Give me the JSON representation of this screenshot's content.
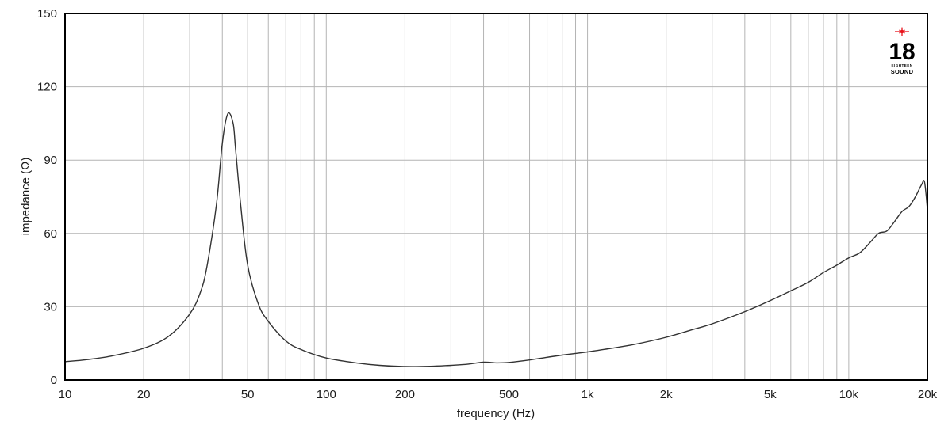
{
  "chart_data": {
    "type": "line",
    "title": "",
    "xlabel": "frequency (Hz)",
    "ylabel": "impedance (Ω)",
    "xscale": "log",
    "xlim": [
      10,
      20000
    ],
    "ylim": [
      0,
      150
    ],
    "grid": true,
    "legend": null,
    "x_ticks": [
      10,
      20,
      50,
      100,
      200,
      500,
      1000,
      2000,
      5000,
      10000,
      20000
    ],
    "x_tick_labels": [
      "10",
      "20",
      "50",
      "100",
      "200",
      "500",
      "1k",
      "2k",
      "5k",
      "10k",
      "20k"
    ],
    "y_ticks": [
      0,
      30,
      60,
      90,
      120,
      150
    ],
    "y_tick_labels": [
      "0",
      "30",
      "60",
      "90",
      "120",
      "150"
    ],
    "series": [
      {
        "name": "impedance",
        "color": "#333333",
        "x": [
          10,
          12,
          15,
          20,
          25,
          30,
          33,
          35,
          38,
          40,
          42,
          44,
          45,
          47,
          50,
          55,
          60,
          70,
          80,
          100,
          130,
          160,
          200,
          250,
          300,
          350,
          400,
          450,
          500,
          600,
          700,
          800,
          1000,
          1200,
          1500,
          2000,
          2500,
          3000,
          4000,
          5000,
          6000,
          7000,
          8000,
          9000,
          10000,
          11000,
          12000,
          13000,
          14000,
          15000,
          16000,
          17000,
          18000,
          19000,
          19500,
          20000
        ],
        "values": [
          7.5,
          8.3,
          9.8,
          13,
          18,
          27,
          36,
          47,
          72,
          97,
          109,
          105,
          94,
          72,
          47,
          31,
          24,
          16,
          12.5,
          9,
          7,
          6,
          5.5,
          5.6,
          6,
          6.5,
          7.3,
          7,
          7.2,
          8.2,
          9.3,
          10.2,
          11.5,
          12.8,
          14.5,
          17.5,
          20.5,
          23,
          28,
          32.5,
          36.5,
          40,
          44,
          47,
          50,
          52,
          56,
          60,
          61,
          65,
          69,
          71,
          75,
          80,
          81,
          70
        ]
      }
    ],
    "annotations": [
      {
        "type": "logo",
        "text": "18",
        "subtext": [
          "EIGHTEEN",
          "SOUND"
        ],
        "position": "top-right",
        "accent_color": "#e8141c"
      }
    ]
  },
  "logo": {
    "number": "18",
    "line1": "EIGHTEEN",
    "line2": "SOUND",
    "accent_color": "#e8141c"
  }
}
